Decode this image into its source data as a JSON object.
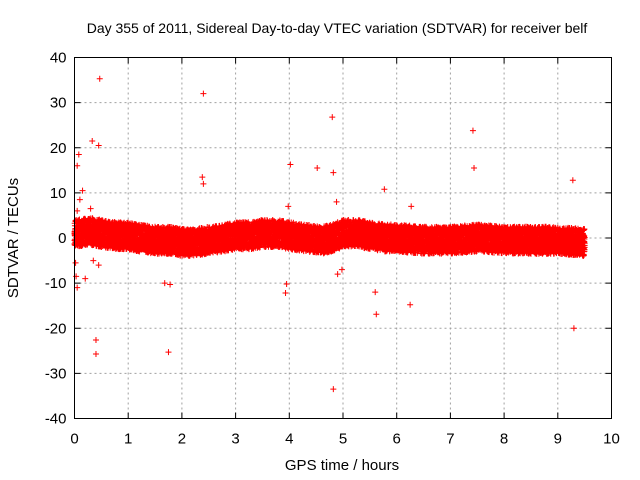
{
  "chart_data": {
    "type": "scatter",
    "title": "Day 355 of 2011, Sidereal Day-to-day VTEC variation (SDTVAR) for receiver belf",
    "xlabel": "GPS time / hours",
    "ylabel": "SDTVAR / TECUs",
    "xlim": [
      0,
      10
    ],
    "ylim": [
      -40,
      40
    ],
    "xticks": [
      0,
      1,
      2,
      3,
      4,
      5,
      6,
      7,
      8,
      9,
      10
    ],
    "yticks": [
      -40,
      -30,
      -20,
      -10,
      0,
      10,
      20,
      30,
      40
    ],
    "grid": true,
    "marker": "+",
    "color": "#ff0000",
    "band": {
      "x_start": 0.0,
      "x_end": 9.5,
      "center": [
        [
          0.0,
          1.0
        ],
        [
          0.3,
          1.5
        ],
        [
          0.5,
          1.0
        ],
        [
          0.8,
          0.5
        ],
        [
          1.0,
          0.5
        ],
        [
          1.2,
          0.0
        ],
        [
          1.5,
          -0.5
        ],
        [
          1.8,
          -0.5
        ],
        [
          2.0,
          -1.0
        ],
        [
          2.2,
          -1.0
        ],
        [
          2.5,
          -0.5
        ],
        [
          2.8,
          0.0
        ],
        [
          3.0,
          0.5
        ],
        [
          3.3,
          0.5
        ],
        [
          3.5,
          1.0
        ],
        [
          3.8,
          1.0
        ],
        [
          4.0,
          0.5
        ],
        [
          4.3,
          0.0
        ],
        [
          4.6,
          -0.5
        ],
        [
          4.8,
          0.0
        ],
        [
          5.0,
          1.0
        ],
        [
          5.3,
          1.0
        ],
        [
          5.5,
          0.5
        ],
        [
          5.8,
          0.0
        ],
        [
          6.0,
          0.0
        ],
        [
          6.5,
          -0.5
        ],
        [
          7.0,
          -0.5
        ],
        [
          7.5,
          0.0
        ],
        [
          8.0,
          -0.5
        ],
        [
          8.5,
          -0.5
        ],
        [
          9.0,
          -0.5
        ],
        [
          9.5,
          -1.0
        ]
      ],
      "half_width": 3.0
    },
    "outliers": [
      {
        "x": 0.47,
        "y": 35.3
      },
      {
        "x": 2.4,
        "y": 32.0
      },
      {
        "x": 4.8,
        "y": 26.8
      },
      {
        "x": 7.42,
        "y": 23.8
      },
      {
        "x": 0.33,
        "y": 21.5
      },
      {
        "x": 0.45,
        "y": 20.5
      },
      {
        "x": 0.08,
        "y": 18.5
      },
      {
        "x": 0.05,
        "y": 16.0
      },
      {
        "x": 4.02,
        "y": 16.3
      },
      {
        "x": 4.52,
        "y": 15.5
      },
      {
        "x": 4.82,
        "y": 14.5
      },
      {
        "x": 7.44,
        "y": 15.5
      },
      {
        "x": 2.38,
        "y": 13.5
      },
      {
        "x": 2.4,
        "y": 12.0
      },
      {
        "x": 9.28,
        "y": 12.8
      },
      {
        "x": 0.15,
        "y": 10.5
      },
      {
        "x": 5.77,
        "y": 10.8
      },
      {
        "x": 0.1,
        "y": 8.5
      },
      {
        "x": 4.88,
        "y": 8.0
      },
      {
        "x": 3.98,
        "y": 7.0
      },
      {
        "x": 6.27,
        "y": 7.0
      },
      {
        "x": 0.05,
        "y": 6.0
      },
      {
        "x": 0.3,
        "y": 6.5
      },
      {
        "x": 0.02,
        "y": -5.5
      },
      {
        "x": 0.03,
        "y": -8.5
      },
      {
        "x": 0.05,
        "y": -11.0
      },
      {
        "x": 0.2,
        "y": -9.0
      },
      {
        "x": 0.35,
        "y": -5.0
      },
      {
        "x": 0.45,
        "y": -6.0
      },
      {
        "x": 1.68,
        "y": -10.0
      },
      {
        "x": 1.78,
        "y": -10.3
      },
      {
        "x": 4.98,
        "y": -7.0
      },
      {
        "x": 4.9,
        "y": -8.0
      },
      {
        "x": 3.95,
        "y": -10.2
      },
      {
        "x": 3.93,
        "y": -12.2
      },
      {
        "x": 5.6,
        "y": -12.0
      },
      {
        "x": 6.25,
        "y": -14.8
      },
      {
        "x": 5.62,
        "y": -16.9
      },
      {
        "x": 9.3,
        "y": -20.0
      },
      {
        "x": 0.4,
        "y": -22.6
      },
      {
        "x": 0.4,
        "y": -25.7
      },
      {
        "x": 1.75,
        "y": -25.3
      },
      {
        "x": 4.82,
        "y": -33.5
      }
    ]
  }
}
